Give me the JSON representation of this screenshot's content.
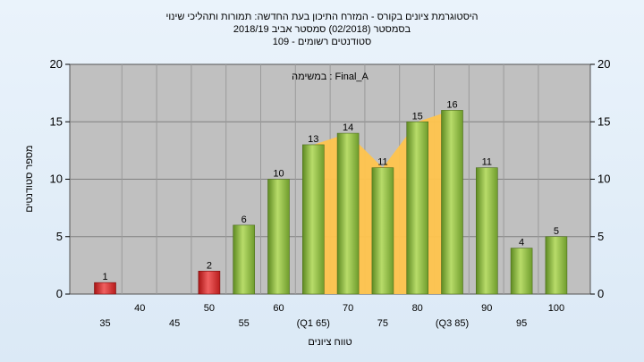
{
  "chart_data": {
    "type": "bar",
    "title_lines": [
      "היסטוגרמת ציונים בקורס - המזרח התיכון בעת החדשה: תמורות ותהליכי שינוי",
      "בסמסטר  (02/2018)  סמסטר אביב 2018/19",
      "סטודנטים רשומים - 109"
    ],
    "annotation": "במשימה : Final_A",
    "xlabel": "טווח ציונים",
    "ylabel": "מספר סטודנטים",
    "ylim": [
      0,
      20
    ],
    "yticks": [
      0,
      5,
      10,
      15,
      20
    ],
    "categories": [
      "35",
      "40",
      "45",
      "50",
      "55",
      "60",
      "(Q1 65)",
      "70",
      "75",
      "80",
      "(Q3 85)",
      "90",
      "95",
      "100"
    ],
    "values": [
      1,
      0,
      0,
      2,
      6,
      10,
      13,
      14,
      11,
      15,
      16,
      11,
      4,
      5
    ],
    "bar_colors": [
      "red",
      null,
      null,
      "red",
      "green",
      "green",
      "green",
      "green",
      "green",
      "green",
      "green",
      "green",
      "green",
      "green"
    ],
    "iqr_band": {
      "from": "(Q1 65)",
      "to": "(Q3 85)",
      "color": "#ffc44d"
    },
    "colors": {
      "plot_bg": "#c0c0c0",
      "red": "#dd2a2a",
      "green": "#8ab83a",
      "band": "#ffc44d"
    },
    "grid": true,
    "legend": "none"
  }
}
